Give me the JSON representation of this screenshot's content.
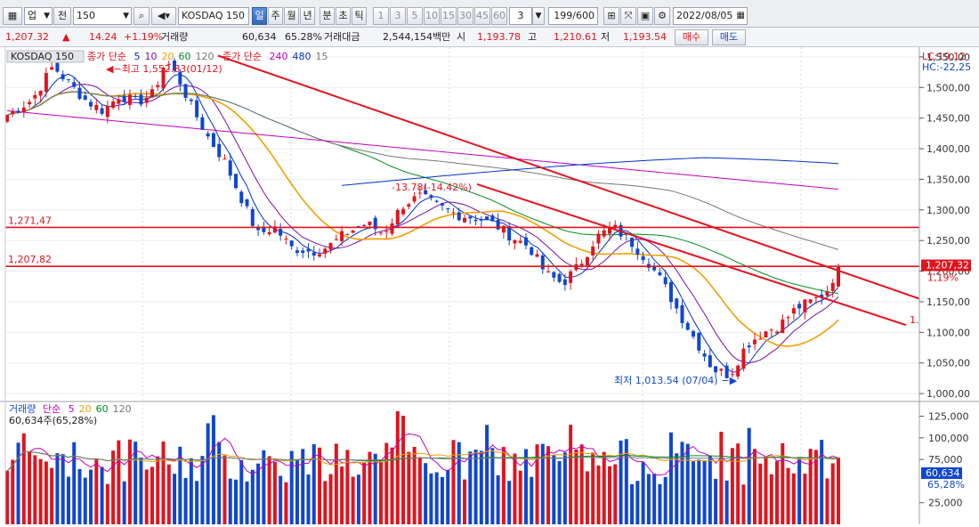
{
  "toolbar": {
    "type_select": "업",
    "prev_label": "전",
    "count_input": "150",
    "symbol_input": "KOSDAQ 150",
    "period_tabs": [
      {
        "label": "일",
        "active": true
      },
      {
        "label": "주",
        "active": false
      },
      {
        "label": "월",
        "active": false
      },
      {
        "label": "년",
        "active": false
      },
      {
        "label": "분",
        "active": false
      },
      {
        "label": "초",
        "active": false
      },
      {
        "label": "틱",
        "active": false
      }
    ],
    "interval_buttons": [
      "1",
      "3",
      "5",
      "10",
      "15",
      "30",
      "45",
      "60"
    ],
    "interval_select": "3",
    "page_counter": "199/600",
    "date": "2022/08/05"
  },
  "quote": {
    "price": "1,207.32",
    "change_arrow": "▲",
    "change": "14.24",
    "change_pct": "+1.19%",
    "volume_label": "거래량",
    "volume": "60,634",
    "volume_ratio": "65.28%",
    "amount_label": "거래대금",
    "amount": "2,544,154백만",
    "open_label": "시",
    "open": "1,193.78",
    "high_label": "고",
    "high": "1,210.61",
    "low_label": "저",
    "low": "1,193.54",
    "buy_label": "매수",
    "sell_label": "매도"
  },
  "price_panel": {
    "symbol_tag": "KOSDAQ 150",
    "ma_legend_prefix": "종가 단순",
    "ma_short": [
      {
        "label": "5",
        "color": "#0030c8"
      },
      {
        "label": "10",
        "color": "#7a0fa8"
      },
      {
        "label": "20",
        "color": "#f0a000"
      },
      {
        "label": "60",
        "color": "#008c20"
      },
      {
        "label": "120",
        "color": "#777777"
      }
    ],
    "ma_long_prefix": "종가 단순",
    "ma_long": [
      {
        "label": "240",
        "color": "#c000c0"
      },
      {
        "label": "480",
        "color": "#0030c8"
      },
      {
        "label": "15",
        "color": "#777777"
      }
    ],
    "high_annotation": "최고 1,552.83(01/12)",
    "low_annotation": "최저 1,013.54 (07/04)",
    "pct_annotation": "-13.78(-14.42%)",
    "corner_lc": "LC:19,12",
    "corner_hc": "HC:-22,25",
    "hline_1": "1,271,47",
    "hline_2": "1,207,82",
    "current_price_tag": "1,207,32",
    "current_pct_tag": "1,19%",
    "trend_end_label": "1.",
    "y_ticks": [
      "1,550,00",
      "1,500,00",
      "1,450,00",
      "1,400,00",
      "1,350,00",
      "1,300,00",
      "1,250,00",
      "1,200,00",
      "1,150,00",
      "1,100,00",
      "1,050,00",
      "1,000,00"
    ]
  },
  "volume_panel": {
    "title": "거래량",
    "ma_prefix": "단순",
    "ma": [
      {
        "label": "5",
        "color": "#c000c0"
      },
      {
        "label": "20",
        "color": "#f0a000"
      },
      {
        "label": "60",
        "color": "#008c20"
      },
      {
        "label": "120",
        "color": "#777777"
      }
    ],
    "current_line": "60,634주(65,28%)",
    "y_ticks": [
      "125,000",
      "100,000",
      "75,000",
      "25,000"
    ],
    "current_tag": "60,634",
    "current_pct_tag": "65,28%"
  },
  "colors": {
    "up": "#e0141e",
    "down": "#1046d0",
    "trend": "#e0141e"
  },
  "chart_data": {
    "type": "candlestick",
    "sessions": 150,
    "y_range": [
      990,
      1560
    ],
    "volume_range": [
      0,
      140000
    ],
    "horizontal_lines": [
      1271.47,
      1207.82
    ],
    "current_price": 1207.32,
    "period_high": 1552.83,
    "period_low": 1013.54
  }
}
